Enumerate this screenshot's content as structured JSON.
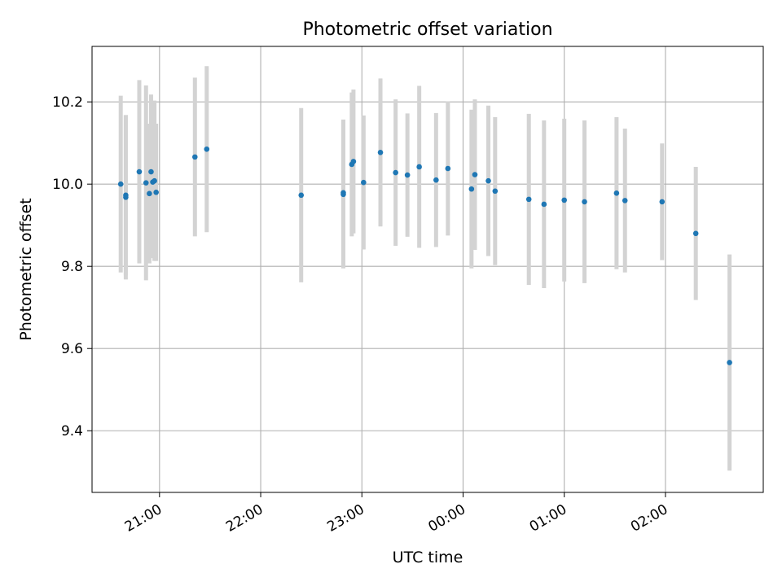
{
  "chart_data": {
    "type": "scatter",
    "title": "Photometric offset variation",
    "xlabel": "UTC time",
    "ylabel": "Photometric offset",
    "x_ticks": [
      "21:00",
      "22:00",
      "23:00",
      "00:00",
      "01:00",
      "02:00"
    ],
    "y_ticks": [
      "9.4",
      "9.6",
      "9.8",
      "10.0",
      "10.2"
    ],
    "ylim": [
      9.25,
      10.335
    ],
    "xlim_hours_utc": [
      "20:20",
      "02:58"
    ],
    "grid": true,
    "series": [
      {
        "marker_color": "#1f77b4",
        "errorbar_color": "#d3d3d3",
        "points": [
          {
            "t": "20:37",
            "y": 10.0,
            "err": 0.215
          },
          {
            "t": "20:40",
            "y": 9.968,
            "err": 0.2
          },
          {
            "t": "20:40",
            "y": 9.973,
            "err": 0.195
          },
          {
            "t": "20:48",
            "y": 10.03,
            "err": 0.223
          },
          {
            "t": "20:52",
            "y": 10.003,
            "err": 0.237
          },
          {
            "t": "20:54",
            "y": 9.977,
            "err": 0.17
          },
          {
            "t": "20:55",
            "y": 10.03,
            "err": 0.188
          },
          {
            "t": "20:56",
            "y": 10.005,
            "err": 0.185
          },
          {
            "t": "20:57",
            "y": 10.008,
            "err": 0.195
          },
          {
            "t": "20:58",
            "y": 9.98,
            "err": 0.167
          },
          {
            "t": "21:21",
            "y": 10.066,
            "err": 0.193
          },
          {
            "t": "21:28",
            "y": 10.085,
            "err": 0.202
          },
          {
            "t": "22:24",
            "y": 9.973,
            "err": 0.212
          },
          {
            "t": "22:49",
            "y": 9.979,
            "err": 0.178
          },
          {
            "t": "22:49",
            "y": 9.975,
            "err": 0.18
          },
          {
            "t": "22:54",
            "y": 10.048,
            "err": 0.175
          },
          {
            "t": "22:55",
            "y": 10.055,
            "err": 0.175
          },
          {
            "t": "23:01",
            "y": 10.004,
            "err": 0.163
          },
          {
            "t": "23:11",
            "y": 10.077,
            "err": 0.18
          },
          {
            "t": "23:20",
            "y": 10.028,
            "err": 0.178
          },
          {
            "t": "23:27",
            "y": 10.022,
            "err": 0.15
          },
          {
            "t": "23:34",
            "y": 10.042,
            "err": 0.197
          },
          {
            "t": "23:44",
            "y": 10.01,
            "err": 0.163
          },
          {
            "t": "23:51",
            "y": 10.038,
            "err": 0.163
          },
          {
            "t": "00:05",
            "y": 9.988,
            "err": 0.193
          },
          {
            "t": "00:07",
            "y": 10.023,
            "err": 0.183
          },
          {
            "t": "00:15",
            "y": 10.008,
            "err": 0.183
          },
          {
            "t": "00:19",
            "y": 9.983,
            "err": 0.18
          },
          {
            "t": "00:39",
            "y": 9.963,
            "err": 0.208
          },
          {
            "t": "00:48",
            "y": 9.951,
            "err": 0.204
          },
          {
            "t": "01:00",
            "y": 9.961,
            "err": 0.198
          },
          {
            "t": "01:12",
            "y": 9.957,
            "err": 0.198
          },
          {
            "t": "01:31",
            "y": 9.978,
            "err": 0.185
          },
          {
            "t": "01:36",
            "y": 9.96,
            "err": 0.175
          },
          {
            "t": "01:58",
            "y": 9.957,
            "err": 0.142
          },
          {
            "t": "02:18",
            "y": 9.88,
            "err": 0.162
          },
          {
            "t": "02:38",
            "y": 9.566,
            "err": 0.263
          }
        ]
      }
    ]
  }
}
